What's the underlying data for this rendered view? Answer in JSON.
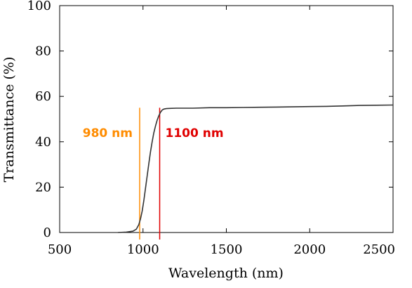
{
  "chart_data": {
    "type": "line",
    "title": "",
    "xlabel": "Wavelength (nm)",
    "ylabel": "Transmittance (%)",
    "xlim": [
      500,
      2500
    ],
    "ylim": [
      0,
      100
    ],
    "x_ticks": [
      500,
      1000,
      1500,
      2000,
      2500
    ],
    "y_ticks": [
      0,
      20,
      40,
      60,
      80,
      100
    ],
    "grid": false,
    "series": [
      {
        "color": "#333333",
        "x": [
          850,
          900,
          940,
          960,
          975,
          985,
          995,
          1005,
          1015,
          1025,
          1035,
          1045,
          1055,
          1065,
          1075,
          1085,
          1095,
          1105,
          1115,
          1125,
          1140,
          1160,
          1200,
          1300,
          1400,
          1500,
          1600,
          1700,
          1800,
          1900,
          2000,
          2100,
          2200,
          2300,
          2400,
          2500
        ],
        "y": [
          0,
          0.2,
          0.6,
          1.5,
          3.5,
          6,
          9.5,
          14,
          19.5,
          25,
          30.5,
          35.5,
          40,
          44,
          47,
          49.5,
          51.5,
          53,
          54,
          54.4,
          54.6,
          54.7,
          54.8,
          54.8,
          55,
          55,
          55.1,
          55.2,
          55.3,
          55.4,
          55.5,
          55.6,
          55.8,
          56,
          56.1,
          56.2
        ]
      }
    ],
    "annotations": [
      {
        "label": "980 nm",
        "x": 980,
        "y_range": [
          0,
          55
        ],
        "color": "#FF8C00"
      },
      {
        "label": "1100 nm",
        "x": 1100,
        "y_range": [
          0,
          55
        ],
        "color": "#E00000"
      }
    ]
  }
}
